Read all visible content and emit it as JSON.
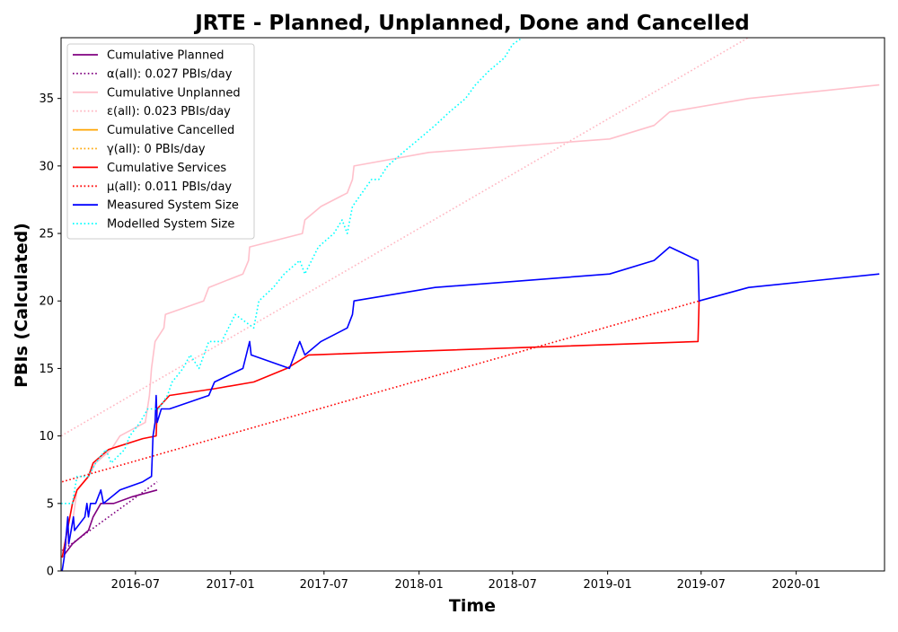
{
  "chart_data": {
    "type": "line",
    "title": "JRTE - Planned, Unplanned, Done  and Cancelled",
    "xlabel": "Time",
    "ylabel": "PBIs (Calculated)",
    "xlim": [
      "2016-02-08",
      "2020-06-20"
    ],
    "ylim": [
      0,
      39.5
    ],
    "x_ticks": [
      "2016-07",
      "2017-01",
      "2017-07",
      "2018-01",
      "2018-07",
      "2019-01",
      "2019-07",
      "2020-01"
    ],
    "y_ticks": [
      0,
      5,
      10,
      15,
      20,
      25,
      30,
      35
    ],
    "grid": false,
    "legend_position": "top-left",
    "series": [
      {
        "name": "Cumulative Planned",
        "color": "#800080",
        "style": "solid",
        "points": [
          [
            "2016-02-10",
            1
          ],
          [
            "2016-03-01",
            2
          ],
          [
            "2016-04-01",
            3
          ],
          [
            "2016-04-10",
            4
          ],
          [
            "2016-04-25",
            5
          ],
          [
            "2016-05-20",
            5
          ],
          [
            "2016-06-25",
            5.5
          ],
          [
            "2016-08-12",
            6
          ]
        ]
      },
      {
        "name": "α(all): 0.027 PBIs/day",
        "color": "#800080",
        "style": "dotted",
        "points": [
          [
            "2016-02-10",
            1.5
          ],
          [
            "2016-08-12",
            6.6
          ]
        ]
      },
      {
        "name": "Cumulative Unplanned",
        "color": "#ffc0cb",
        "style": "solid",
        "points": [
          [
            "2016-02-10",
            1
          ],
          [
            "2016-02-28",
            3
          ],
          [
            "2016-03-10",
            6
          ],
          [
            "2016-04-01",
            7
          ],
          [
            "2016-04-15",
            8
          ],
          [
            "2016-05-15",
            9
          ],
          [
            "2016-06-01",
            10
          ],
          [
            "2016-07-20",
            11
          ],
          [
            "2016-07-28",
            13
          ],
          [
            "2016-08-01",
            15
          ],
          [
            "2016-08-08",
            17
          ],
          [
            "2016-08-25",
            18
          ],
          [
            "2016-08-28",
            19
          ],
          [
            "2016-11-10",
            20
          ],
          [
            "2016-11-20",
            21
          ],
          [
            "2017-01-25",
            22
          ],
          [
            "2017-02-05",
            23
          ],
          [
            "2017-02-07",
            24
          ],
          [
            "2017-05-20",
            25
          ],
          [
            "2017-05-25",
            26
          ],
          [
            "2017-06-25",
            27
          ],
          [
            "2017-08-15",
            28
          ],
          [
            "2017-08-25",
            29
          ],
          [
            "2017-08-28",
            30
          ],
          [
            "2018-01-20",
            31
          ],
          [
            "2019-01-05",
            32
          ],
          [
            "2019-04-01",
            33
          ],
          [
            "2019-05-01",
            34
          ],
          [
            "2019-10-01",
            35
          ],
          [
            "2020-06-10",
            36
          ]
        ]
      },
      {
        "name": "ε(all): 0.023 PBIs/day",
        "color": "#ffb6c1",
        "style": "dotted",
        "points": [
          [
            "2016-02-08",
            10
          ],
          [
            "2019-09-30",
            39.5
          ]
        ]
      },
      {
        "name": "Cumulative Cancelled",
        "color": "#ffa500",
        "style": "solid",
        "points": []
      },
      {
        "name": "γ(all): 0 PBIs/day",
        "color": "#ffa500",
        "style": "dotted",
        "points": []
      },
      {
        "name": "Cumulative Services",
        "color": "#ff0000",
        "style": "solid",
        "points": [
          [
            "2016-02-10",
            1
          ],
          [
            "2016-03-01",
            5
          ],
          [
            "2016-03-10",
            6
          ],
          [
            "2016-04-01",
            7
          ],
          [
            "2016-04-10",
            8
          ],
          [
            "2016-04-25",
            8.5
          ],
          [
            "2016-05-10",
            9
          ],
          [
            "2016-07-15",
            9.8
          ],
          [
            "2016-08-10",
            10
          ],
          [
            "2016-08-12",
            12
          ],
          [
            "2016-09-05",
            13
          ],
          [
            "2016-12-01",
            13.5
          ],
          [
            "2017-02-15",
            14
          ],
          [
            "2017-04-20",
            15
          ],
          [
            "2017-06-01",
            16
          ],
          [
            "2019-06-25",
            17
          ],
          [
            "2019-06-27",
            20
          ]
        ]
      },
      {
        "name": "μ(all): 0.011 PBIs/day",
        "color": "#ff0000",
        "style": "dotted",
        "points": [
          [
            "2016-02-10",
            6.6
          ],
          [
            "2019-06-27",
            20
          ]
        ]
      },
      {
        "name": "Measured System Size",
        "color": "#0000ff",
        "style": "solid",
        "points": [
          [
            "2016-02-10",
            0
          ],
          [
            "2016-02-14",
            1
          ],
          [
            "2016-02-21",
            4
          ],
          [
            "2016-02-23",
            2
          ],
          [
            "2016-03-03",
            4
          ],
          [
            "2016-03-05",
            3
          ],
          [
            "2016-03-25",
            4
          ],
          [
            "2016-03-29",
            5
          ],
          [
            "2016-04-01",
            4
          ],
          [
            "2016-04-05",
            5
          ],
          [
            "2016-04-15",
            5
          ],
          [
            "2016-04-25",
            6
          ],
          [
            "2016-04-30",
            5
          ],
          [
            "2016-06-01",
            6
          ],
          [
            "2016-07-15",
            6.6
          ],
          [
            "2016-08-01",
            7
          ],
          [
            "2016-08-04",
            10
          ],
          [
            "2016-08-08",
            11
          ],
          [
            "2016-08-10",
            13
          ],
          [
            "2016-08-12",
            11
          ],
          [
            "2016-08-20",
            12
          ],
          [
            "2016-09-05",
            12
          ],
          [
            "2016-11-20",
            13
          ],
          [
            "2016-12-01",
            14
          ],
          [
            "2017-01-25",
            15
          ],
          [
            "2017-02-07",
            17
          ],
          [
            "2017-02-10",
            16
          ],
          [
            "2017-04-25",
            15
          ],
          [
            "2017-05-15",
            17
          ],
          [
            "2017-05-25",
            16
          ],
          [
            "2017-06-25",
            17
          ],
          [
            "2017-08-15",
            18
          ],
          [
            "2017-08-25",
            19
          ],
          [
            "2017-08-28",
            20
          ],
          [
            "2018-02-01",
            21
          ],
          [
            "2019-01-05",
            22
          ],
          [
            "2019-04-01",
            23
          ],
          [
            "2019-05-01",
            24
          ],
          [
            "2019-06-25",
            23
          ],
          [
            "2019-06-27",
            20
          ],
          [
            "2019-10-01",
            21
          ],
          [
            "2020-06-10",
            22
          ]
        ]
      },
      {
        "name": "Modelled System Size",
        "color": "#00ffff",
        "style": "dotted",
        "points": [
          [
            "2016-02-08",
            5
          ],
          [
            "2016-03-01",
            5
          ],
          [
            "2016-03-05",
            6
          ],
          [
            "2016-03-10",
            7
          ],
          [
            "2016-04-01",
            7
          ],
          [
            "2016-04-15",
            8
          ],
          [
            "2016-05-05",
            9
          ],
          [
            "2016-05-15",
            8
          ],
          [
            "2016-06-10",
            9
          ],
          [
            "2016-06-20",
            10
          ],
          [
            "2016-07-10",
            11
          ],
          [
            "2016-07-25",
            12
          ],
          [
            "2016-08-15",
            12
          ],
          [
            "2016-09-01",
            13
          ],
          [
            "2016-09-10",
            14
          ],
          [
            "2016-10-01",
            15
          ],
          [
            "2016-10-15",
            16
          ],
          [
            "2016-11-01",
            15
          ],
          [
            "2016-11-20",
            17
          ],
          [
            "2016-12-15",
            17
          ],
          [
            "2017-01-10",
            19
          ],
          [
            "2017-02-15",
            18
          ],
          [
            "2017-02-25",
            20
          ],
          [
            "2017-03-25",
            21
          ],
          [
            "2017-04-15",
            22
          ],
          [
            "2017-05-15",
            23
          ],
          [
            "2017-05-25",
            22
          ],
          [
            "2017-06-20",
            24
          ],
          [
            "2017-07-20",
            25
          ],
          [
            "2017-08-05",
            26
          ],
          [
            "2017-08-15",
            25
          ],
          [
            "2017-08-25",
            27
          ],
          [
            "2017-10-01",
            29
          ],
          [
            "2017-10-15",
            29
          ],
          [
            "2017-11-01",
            30
          ],
          [
            "2017-12-01",
            31
          ],
          [
            "2018-01-01",
            32
          ],
          [
            "2018-02-01",
            33
          ],
          [
            "2018-03-01",
            34
          ],
          [
            "2018-04-01",
            35
          ],
          [
            "2018-04-20",
            36
          ],
          [
            "2018-05-15",
            37
          ],
          [
            "2018-06-15",
            38
          ],
          [
            "2018-07-01",
            39
          ],
          [
            "2018-07-20",
            39.5
          ]
        ]
      }
    ]
  }
}
